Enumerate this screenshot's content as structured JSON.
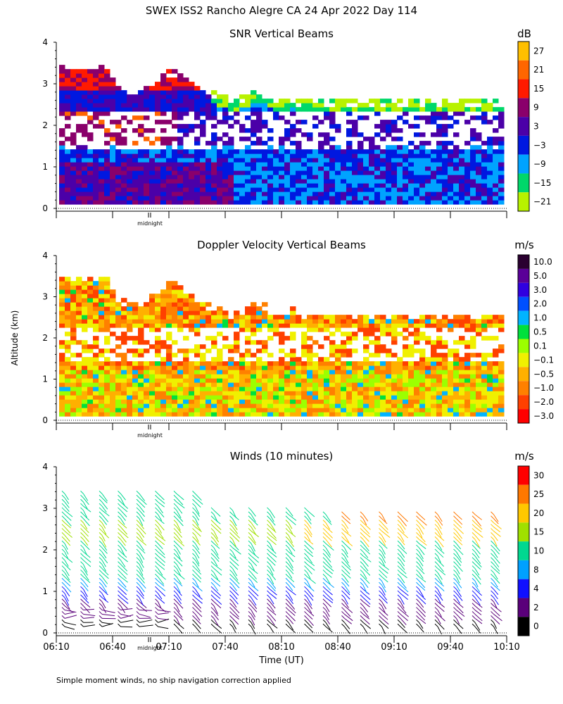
{
  "figure": {
    "title": "SWEX ISS2 Rancho Alegre CA  24 Apr 2022 Day 114",
    "shared_ylabel": "Altitude (km)",
    "shared_xlabel": "Time (UT)",
    "footnote": "Simple moment winds, no ship navigation correction applied",
    "midnight_label": "midnight"
  },
  "chart_data": [
    {
      "type": "heatmap",
      "title": "SNR Vertical Beams",
      "ylabel": "Altitude (km)",
      "ylim": [
        0,
        4
      ],
      "yticks": [
        "0",
        "1",
        "2",
        "3",
        "4"
      ],
      "colorbar_unit": "dB",
      "colorbar_labels": [
        "27",
        "21",
        "15",
        "9",
        "3",
        "−3",
        "−9",
        "−15",
        "−21"
      ],
      "colorbar_colors": [
        "#ffbf00",
        "#ff6600",
        "#ff1a00",
        "#8a006b",
        "#4b00a8",
        "#0018e0",
        "#00a3ff",
        "#00d86a",
        "#b8f200"
      ]
    },
    {
      "type": "heatmap",
      "title": "Doppler Velocity Vertical Beams",
      "ylabel": "Altitude (km)",
      "ylim": [
        0,
        4
      ],
      "yticks": [
        "0",
        "1",
        "2",
        "3",
        "4"
      ],
      "colorbar_unit": "m/s",
      "colorbar_labels": [
        "10.0",
        "5.0",
        "3.0",
        "2.0",
        "1.0",
        "0.5",
        "0.1",
        "−0.1",
        "−0.5",
        "−1.0",
        "−2.0",
        "−3.0"
      ],
      "colorbar_colors": [
        "#2a0030",
        "#5a0098",
        "#3000e0",
        "#0050ff",
        "#00b4ff",
        "#00e03c",
        "#9cff00",
        "#f0f000",
        "#ffb000",
        "#ff8000",
        "#ff4000",
        "#ff0000"
      ]
    },
    {
      "type": "scatter",
      "title": "Winds (10 minutes)",
      "ylabel": "Altitude (km)",
      "xlabel": "Time (UT)",
      "ylim": [
        0,
        4
      ],
      "yticks": [
        "0",
        "1",
        "2",
        "3",
        "4"
      ],
      "xticks": [
        "06:10",
        "06:40",
        "07:10",
        "07:40",
        "08:10",
        "08:40",
        "09:10",
        "09:40",
        "10:10"
      ],
      "colorbar_unit": "m/s",
      "colorbar_labels": [
        "30",
        "25",
        "20",
        "15",
        "10",
        "8",
        "4",
        "2",
        "0"
      ],
      "colorbar_colors": [
        "#ff0000",
        "#ff7800",
        "#ffc800",
        "#a0e000",
        "#00d890",
        "#00a0ff",
        "#1010ff",
        "#5a007a",
        "#000000"
      ]
    }
  ]
}
